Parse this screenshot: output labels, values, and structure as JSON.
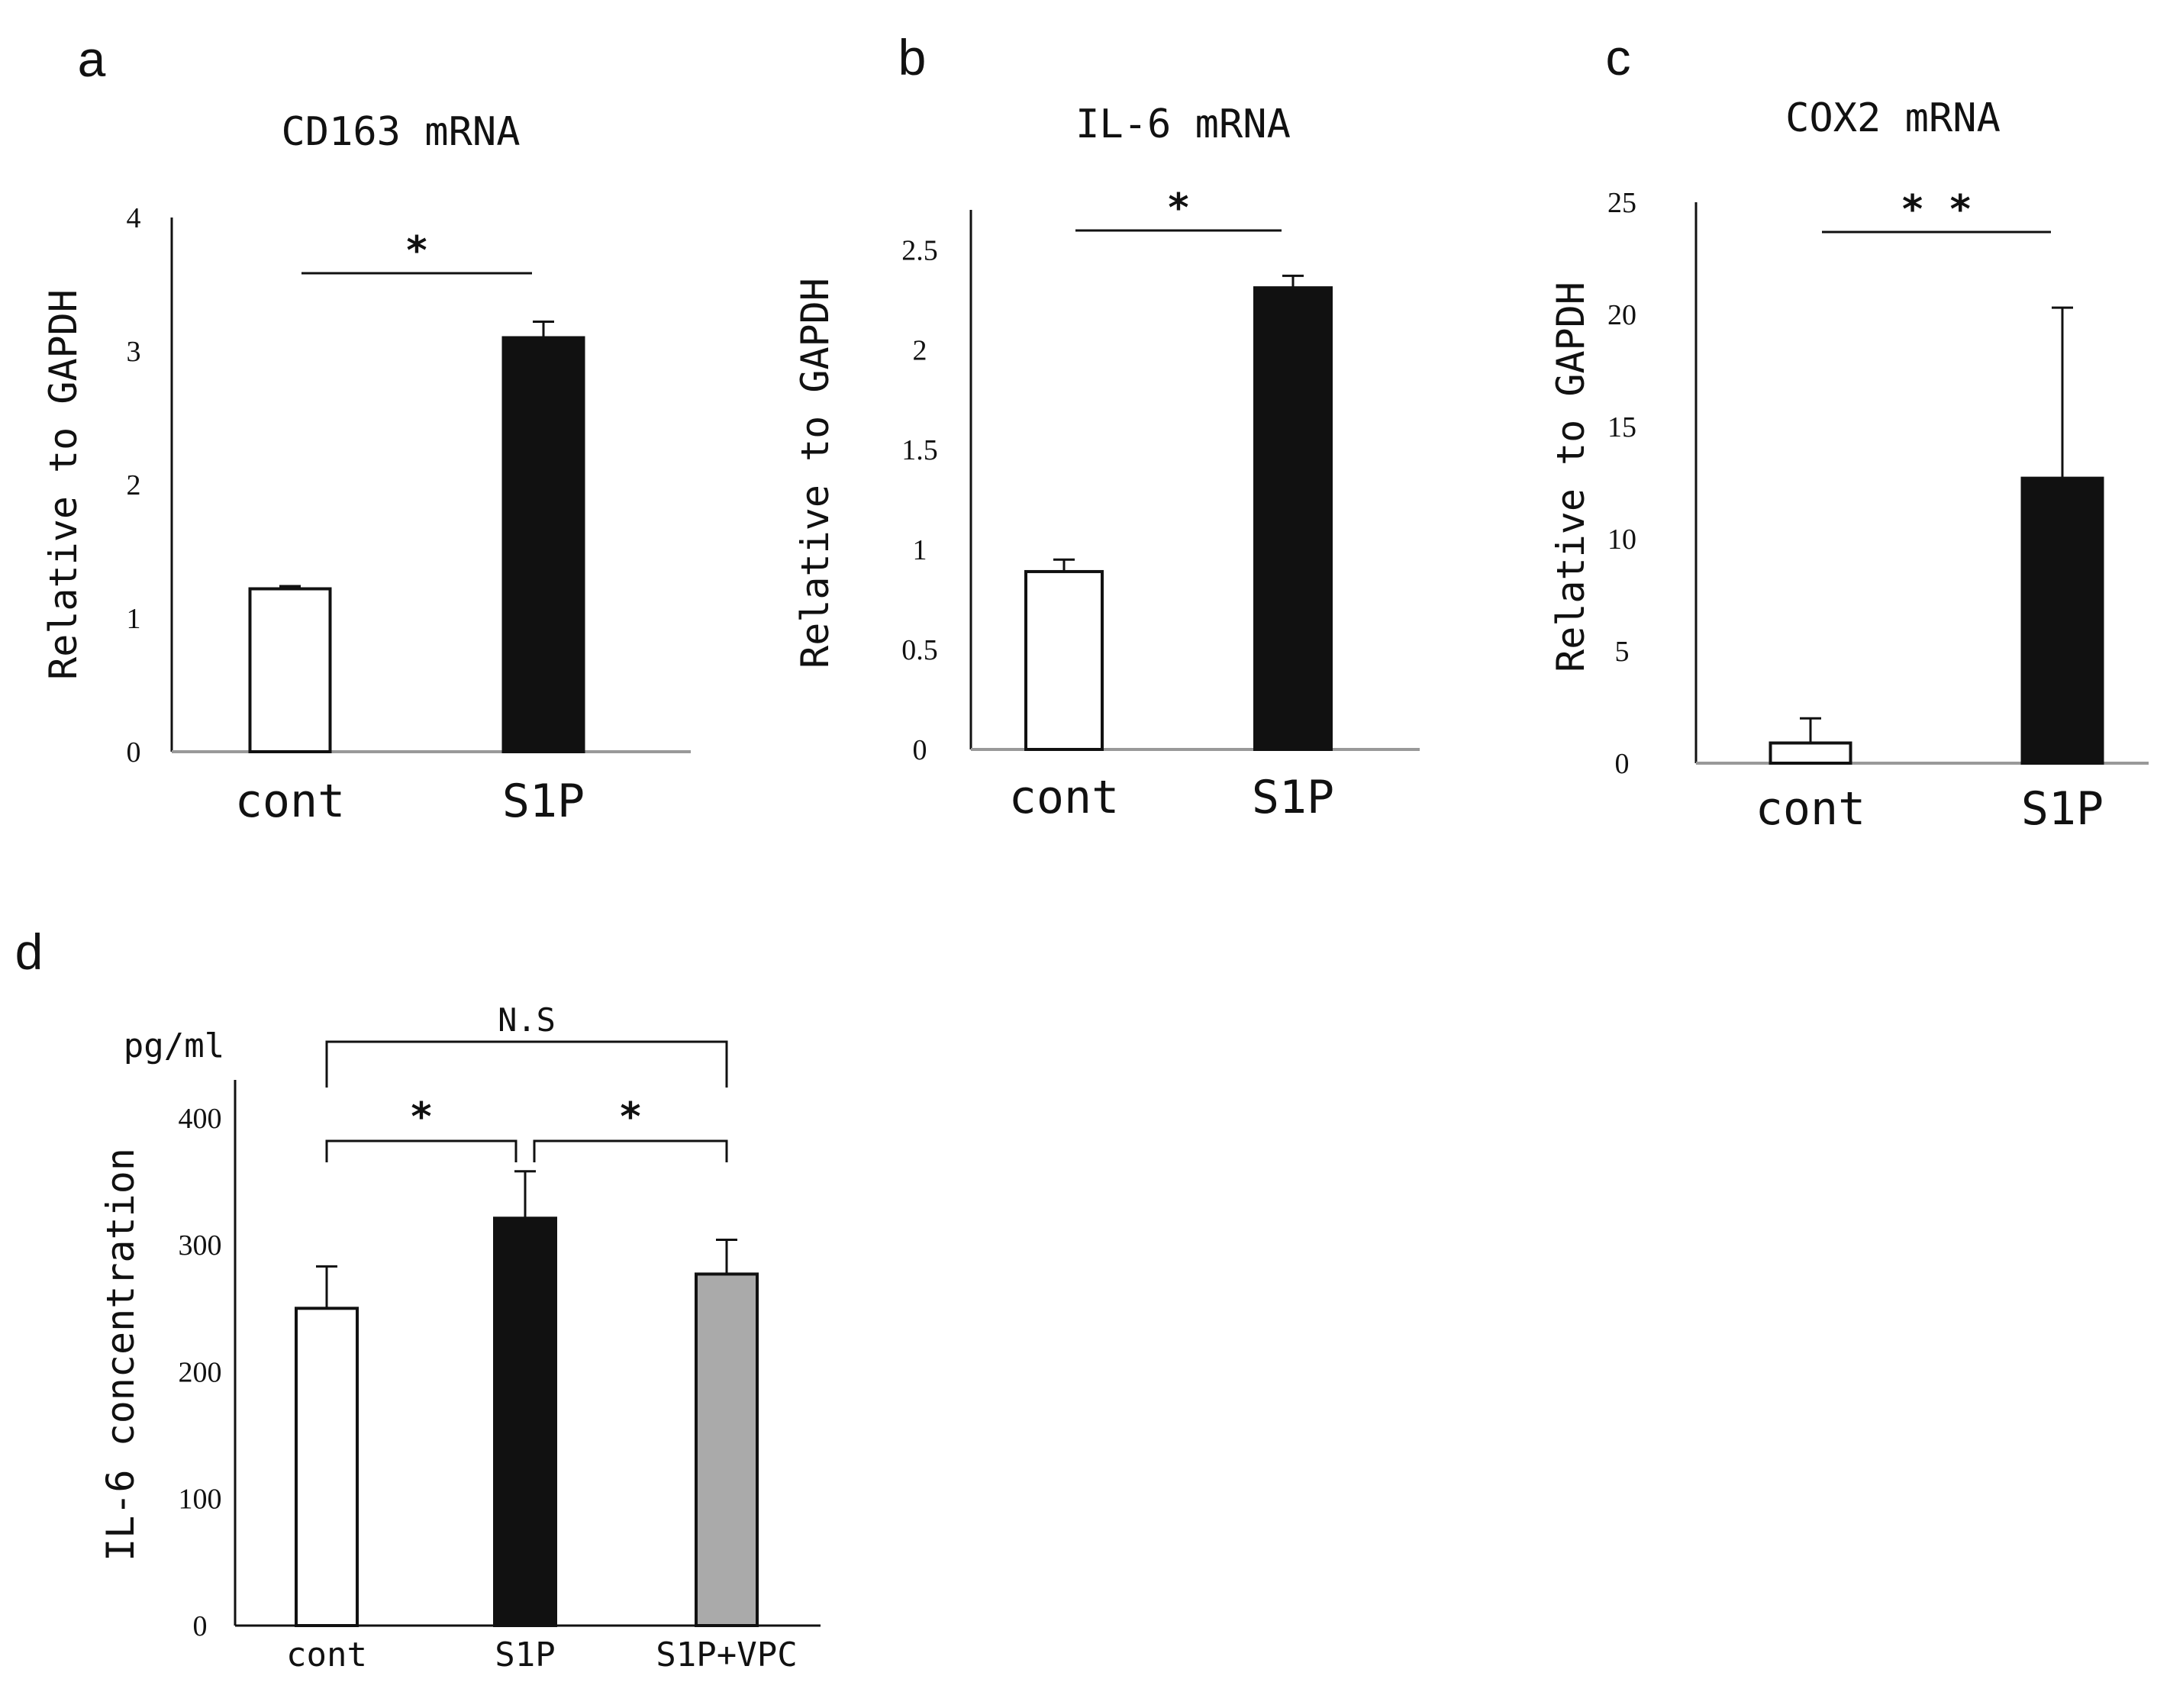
{
  "chart_data": [
    {
      "panel": "a",
      "type": "bar",
      "title": "CD163 mRNA",
      "ylabel": "Relative to GAPDH",
      "xlabel": "",
      "ylim": [
        0,
        4
      ],
      "yticks": [
        0,
        1,
        2,
        3,
        4
      ],
      "categories": [
        "cont",
        "S1P"
      ],
      "values": [
        1.22,
        3.1
      ],
      "errors": [
        0.02,
        0.12
      ],
      "colors": [
        "#ffffff",
        "#111111"
      ],
      "significance": [
        {
          "from": 0,
          "to": 1,
          "label": "*",
          "style": "line",
          "level": 3.93
        }
      ]
    },
    {
      "panel": "b",
      "type": "bar",
      "title": "IL-6 mRNA",
      "ylabel": "Relative to GAPDH",
      "xlabel": "",
      "ylim": [
        0,
        2.7
      ],
      "yticks": [
        0,
        0.5,
        1,
        1.5,
        2,
        2.5
      ],
      "ytick_labels": [
        "0",
        "0.5",
        "1",
        "1.5",
        "2",
        "2.5"
      ],
      "categories": [
        "cont",
        "S1P"
      ],
      "values": [
        0.89,
        2.31
      ],
      "errors": [
        0.06,
        0.06
      ],
      "colors": [
        "#ffffff",
        "#111111"
      ],
      "significance": [
        {
          "from": 0,
          "to": 1,
          "label": "*",
          "style": "line",
          "level": 2.6
        }
      ]
    },
    {
      "panel": "c",
      "type": "bar",
      "title": "COX2 mRNA",
      "ylabel": "Relative to GAPDH",
      "xlabel": "",
      "ylim": [
        0,
        25
      ],
      "yticks": [
        0,
        5,
        10,
        15,
        20,
        25
      ],
      "categories": [
        "cont",
        "S1P"
      ],
      "values": [
        0.9,
        12.7
      ],
      "errors": [
        1.1,
        7.6
      ],
      "colors": [
        "#ffffff",
        "#111111"
      ],
      "significance": [
        {
          "from": 0,
          "to": 1,
          "label": "* *",
          "style": "line",
          "level": 24.0
        }
      ]
    },
    {
      "panel": "d",
      "type": "bar",
      "title": "",
      "ylabel": "IL-6 concentration",
      "yunit": "pg/ml",
      "xlabel": "",
      "ylim": [
        0,
        430
      ],
      "yticks": [
        0,
        100,
        200,
        300,
        400
      ],
      "categories": [
        "cont",
        "S1P",
        "S1P+VPC"
      ],
      "values": [
        250,
        321,
        277
      ],
      "errors": [
        33,
        37,
        27
      ],
      "colors": [
        "#ffffff",
        "#111111",
        "#aaaaaa"
      ],
      "significance": [
        {
          "from": 0,
          "to": 1,
          "label": "*",
          "style": "bracket",
          "level": 388
        },
        {
          "from": 1,
          "to": 2,
          "label": "*",
          "style": "bracket",
          "level": 388
        },
        {
          "from": 0,
          "to": 2,
          "label": "N.S",
          "style": "bracket",
          "level": 465
        }
      ]
    }
  ]
}
